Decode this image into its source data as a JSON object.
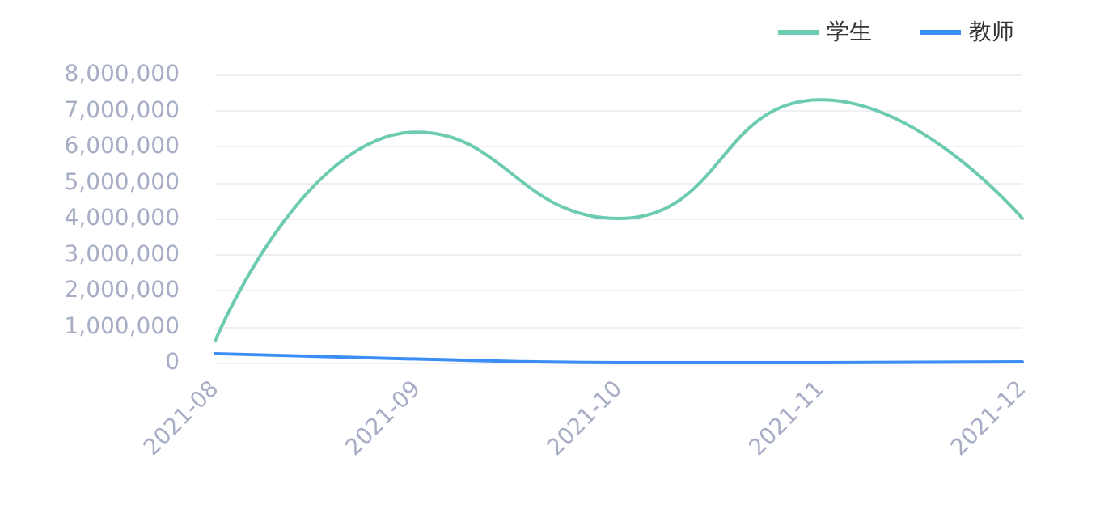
{
  "chart_data": {
    "type": "line",
    "categories": [
      "2021-08",
      "2021-09",
      "2021-10",
      "2021-11",
      "2021-12"
    ],
    "series": [
      {
        "name": "学生",
        "color": "#6ccbb0",
        "values": [
          600000,
          6400000,
          4000000,
          7300000,
          4000000
        ]
      },
      {
        "name": "教师",
        "color": "#3a8ef6",
        "values": [
          250000,
          100000,
          0,
          0,
          20000
        ]
      }
    ],
    "ylim": [
      0,
      8000000
    ],
    "yticks": [
      0,
      {
        "value": 1000000,
        "label": "1,000,000"
      },
      {
        "value": 2000000,
        "label": "2,000,000"
      },
      {
        "value": 3000000,
        "label": "3,000,000"
      },
      {
        "value": 4000000,
        "label": "4,000,000"
      },
      {
        "value": 5000000,
        "label": "5,000,000"
      },
      {
        "value": 6000000,
        "label": "6,000,000"
      },
      {
        "value": 7000000,
        "label": "7,000,000"
      },
      {
        "value": 8000000,
        "label": "8,000,000"
      }
    ],
    "grid": "y",
    "legend": "top right",
    "marker": "none",
    "line_style": "solid"
  }
}
